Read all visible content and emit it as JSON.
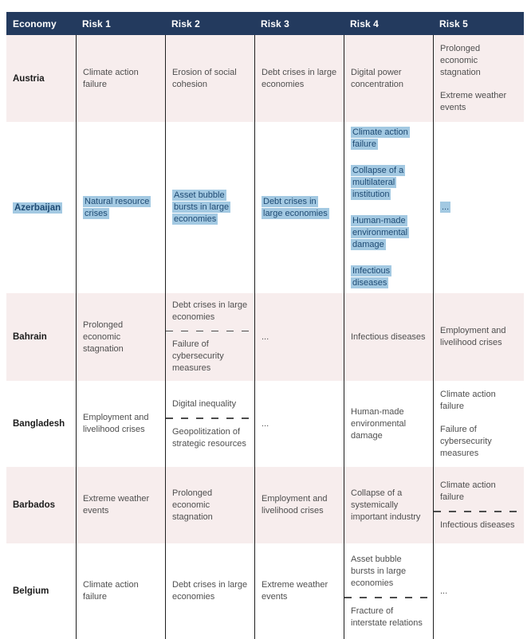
{
  "table": {
    "columns": [
      "Economy",
      "Risk 1",
      "Risk 2",
      "Risk 3",
      "Risk 4",
      "Risk 5"
    ],
    "rows": [
      {
        "economy": "Austria",
        "highlighted": false,
        "cells": [
          {
            "items": [
              "Climate action failure"
            ],
            "divider": "none"
          },
          {
            "items": [
              "Erosion of social cohesion"
            ],
            "divider": "none"
          },
          {
            "items": [
              "Debt crises in large economies"
            ],
            "divider": "none"
          },
          {
            "items": [
              "Digital power concentration"
            ],
            "divider": "none"
          },
          {
            "items": [
              "Prolonged economic stagnation",
              "Extreme weather events"
            ],
            "divider": "gap"
          }
        ]
      },
      {
        "economy": "Azerbaijan",
        "highlighted": true,
        "cells": [
          {
            "items": [
              "Natural resource crises"
            ],
            "divider": "none"
          },
          {
            "items": [
              "Asset bubble bursts in large economies"
            ],
            "divider": "none"
          },
          {
            "items": [
              "Debt crises in large economies"
            ],
            "divider": "none"
          },
          {
            "items": [
              "Climate action failure",
              "Collapse of a multilateral institution",
              "Human-made environmental damage",
              "Infectious diseases"
            ],
            "divider": "dashed"
          },
          {
            "items": [
              "..."
            ],
            "divider": "none"
          }
        ]
      },
      {
        "economy": "Bahrain",
        "highlighted": false,
        "cells": [
          {
            "items": [
              "Prolonged economic stagnation"
            ],
            "divider": "none"
          },
          {
            "items": [
              "Debt crises in large economies",
              "Failure of cybersecurity measures"
            ],
            "divider": "dashed"
          },
          {
            "items": [
              "..."
            ],
            "divider": "none"
          },
          {
            "items": [
              "Infectious diseases"
            ],
            "divider": "none"
          },
          {
            "items": [
              "Employment and livelihood crises"
            ],
            "divider": "none"
          }
        ]
      },
      {
        "economy": "Bangladesh",
        "highlighted": false,
        "cells": [
          {
            "items": [
              "Employment and livelihood crises"
            ],
            "divider": "none"
          },
          {
            "items": [
              "Digital inequality",
              "Geopolitization of strategic resources"
            ],
            "divider": "dashed"
          },
          {
            "items": [
              "..."
            ],
            "divider": "none"
          },
          {
            "items": [
              "Human-made environmental damage"
            ],
            "divider": "none"
          },
          {
            "items": [
              "Climate action failure",
              "Failure of cybersecurity measures"
            ],
            "divider": "gap"
          }
        ]
      },
      {
        "economy": "Barbados",
        "highlighted": false,
        "cells": [
          {
            "items": [
              "Extreme weather events"
            ],
            "divider": "none"
          },
          {
            "items": [
              "Prolonged economic stagnation"
            ],
            "divider": "none"
          },
          {
            "items": [
              "Employment and livelihood crises"
            ],
            "divider": "none"
          },
          {
            "items": [
              "Collapse of a systemically important industry"
            ],
            "divider": "none"
          },
          {
            "items": [
              "Climate action failure",
              "Infectious diseases"
            ],
            "divider": "dashed"
          }
        ]
      },
      {
        "economy": "Belgium",
        "highlighted": false,
        "cells": [
          {
            "items": [
              "Climate action failure"
            ],
            "divider": "none"
          },
          {
            "items": [
              "Debt crises in large economies"
            ],
            "divider": "none"
          },
          {
            "items": [
              "Extreme weather events"
            ],
            "divider": "none"
          },
          {
            "items": [
              "Asset bubble bursts in large economies",
              "Fracture of interstate relations"
            ],
            "divider": "dashed"
          },
          {
            "items": [
              "..."
            ],
            "divider": "none"
          }
        ]
      }
    ]
  },
  "colors": {
    "header_bg": "#233a5e",
    "header_text": "#ffffff",
    "row_pink": "#f7eded",
    "row_white": "#ffffff",
    "body_text": "#4f4f4f",
    "economy_text": "#1c1c1c",
    "column_line": "#1f1f1f",
    "dash_line": "#4d4d4d",
    "highlight_bg": "#a3c9e2",
    "highlight_text": "#1e4a73"
  }
}
